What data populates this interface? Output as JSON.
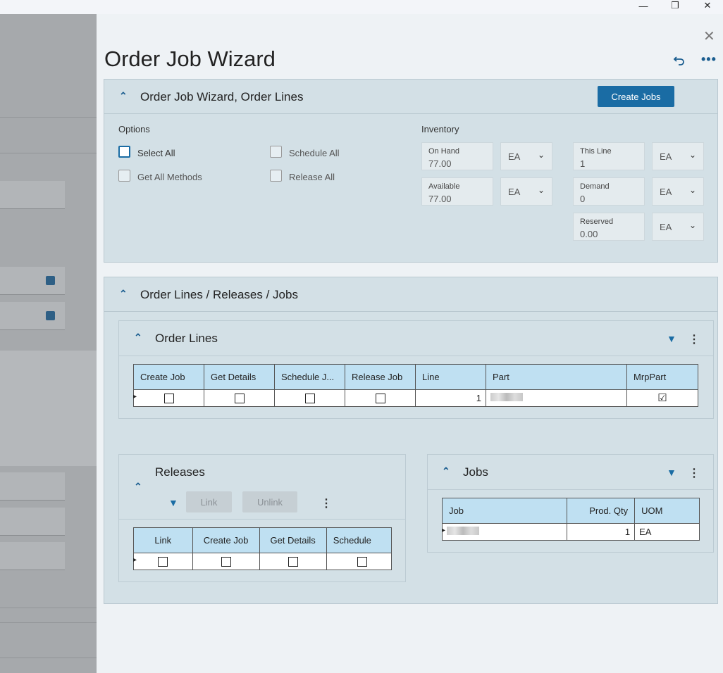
{
  "window": {
    "minimize_glyph": "—",
    "restore_glyph": "❐",
    "close_glyph": "✕"
  },
  "wizard": {
    "title": "Order Job Wizard",
    "close_glyph": "✕",
    "more_glyph": "•••"
  },
  "order_lines_section": {
    "title": "Order Job Wizard, Order Lines",
    "create_jobs_label": "Create Jobs",
    "options_label": "Options",
    "options": {
      "select_all": "Select All",
      "schedule_all": "Schedule All",
      "get_all_methods": "Get All Methods",
      "release_all": "Release All"
    },
    "inventory_label": "Inventory",
    "inventory": {
      "on_hand": {
        "label": "On Hand",
        "value": "77.00",
        "uom": "EA"
      },
      "available": {
        "label": "Available",
        "value": "77.00",
        "uom": "EA"
      },
      "this_line": {
        "label": "This Line",
        "value": "1",
        "uom": "EA"
      },
      "demand": {
        "label": "Demand",
        "value": "0",
        "uom": "EA"
      },
      "reserved": {
        "label": "Reserved",
        "value": "0.00",
        "uom": "EA"
      }
    }
  },
  "olrj_section": {
    "title": "Order Lines / Releases / Jobs",
    "order_lines": {
      "title": "Order Lines",
      "columns": [
        "Create Job",
        "Get Details",
        "Schedule J...",
        "Release Job",
        "Line",
        "Part",
        "MrpPart"
      ],
      "row": {
        "line": "1",
        "mrp_part_checked": "☑"
      }
    },
    "releases": {
      "title": "Releases",
      "link_label": "Link",
      "unlink_label": "Unlink",
      "columns": [
        "Link",
        "Create Job",
        "Get Details",
        "Schedule"
      ]
    },
    "jobs": {
      "title": "Jobs",
      "columns": [
        "Job",
        "Prod. Qty",
        "UOM"
      ],
      "row": {
        "prod_qty": "1",
        "uom": "EA"
      }
    }
  },
  "icons": {
    "collapse": "⌃",
    "chevron_down": "⌄",
    "filter": "▼",
    "kebab": "⋮",
    "row_marker": "▸"
  }
}
